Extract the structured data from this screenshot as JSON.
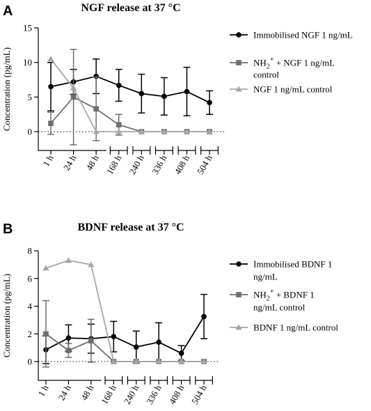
{
  "chart_data": [
    {
      "panel": "A",
      "type": "line",
      "title": "NGF release at 37 °C",
      "xlabel": "",
      "ylabel": "Concentration (pg/mL)",
      "ylim": [
        0,
        15
      ],
      "yticks": [
        "0",
        "5",
        "10",
        "15"
      ],
      "categories": [
        "1 h",
        "24 h",
        "48 h",
        "168 h",
        "240 h",
        "336 h",
        "408 h",
        "504 h"
      ],
      "legend_position": "right",
      "series": [
        {
          "name": "Immobilised NGF 1 ng/mL",
          "label_lines": [
            "Immobilised NGF 1 ng/mL"
          ],
          "marker": "circle",
          "color": "#000000",
          "values": [
            6.5,
            7.2,
            8.0,
            6.7,
            5.5,
            5.1,
            5.8,
            4.2
          ],
          "err": [
            3.5,
            1.8,
            2.5,
            2.3,
            2.8,
            2.7,
            3.5,
            1.7
          ]
        },
        {
          "name": "NH2+ + NGF 1 ng/mL control",
          "label_lines": [
            "NH2+ + NGF 1 ng/mL",
            "control"
          ],
          "marker": "square",
          "color": "#6e6e6e",
          "values": [
            1.2,
            5.0,
            3.3,
            1.0,
            0,
            0,
            0,
            0
          ],
          "err": [
            1.6,
            6.9,
            4.6,
            1.5,
            0,
            0,
            0,
            0
          ]
        },
        {
          "name": "NGF 1 ng/mL control",
          "label_lines": [
            "NGF 1 ng/mL control"
          ],
          "marker": "triangle",
          "color": "#a6a6a6",
          "values": [
            10.5,
            6.3,
            0,
            0,
            0,
            0,
            0,
            0
          ],
          "err": [
            0,
            0,
            0,
            0,
            0,
            0,
            0,
            0
          ]
        }
      ]
    },
    {
      "panel": "B",
      "type": "line",
      "title": "BDNF release at 37 °C",
      "xlabel": "",
      "ylabel": "Concentration (pg/mL)",
      "ylim": [
        0,
        8
      ],
      "yticks": [
        "0",
        "2",
        "4",
        "6",
        "8"
      ],
      "categories": [
        "1 h",
        "24 h",
        "48 h",
        "168 h",
        "240 h",
        "336 h",
        "408 h",
        "504 h"
      ],
      "legend_position": "right",
      "series": [
        {
          "name": "Immobilised BDNF 1 ng/mL",
          "label_lines": [
            "Immobilised BDNF 1",
            "ng/mL"
          ],
          "marker": "circle",
          "color": "#000000",
          "values": [
            0.85,
            1.7,
            1.65,
            1.8,
            1.05,
            1.4,
            0.6,
            3.25
          ],
          "err": [
            1.0,
            0.95,
            1.05,
            1.1,
            1.15,
            1.4,
            0.55,
            1.6
          ]
        },
        {
          "name": "NH2+ + BDNF 1 ng/mL control",
          "label_lines": [
            "NH2+ + BDNF 1",
            "ng/mL control"
          ],
          "marker": "square",
          "color": "#6e6e6e",
          "values": [
            2.0,
            0.8,
            1.5,
            0,
            0,
            0,
            0,
            0
          ],
          "err": [
            2.4,
            0.5,
            1.55,
            0,
            0,
            0,
            0,
            0
          ]
        },
        {
          "name": "BDNF 1 ng/mL control",
          "label_lines": [
            "BDNF 1 ng/mL control"
          ],
          "marker": "triangle",
          "color": "#a6a6a6",
          "values": [
            6.75,
            7.3,
            7.0,
            0,
            0,
            0,
            0,
            0
          ],
          "err": [
            0,
            0,
            0,
            0,
            0,
            0,
            0,
            0
          ]
        }
      ]
    }
  ]
}
